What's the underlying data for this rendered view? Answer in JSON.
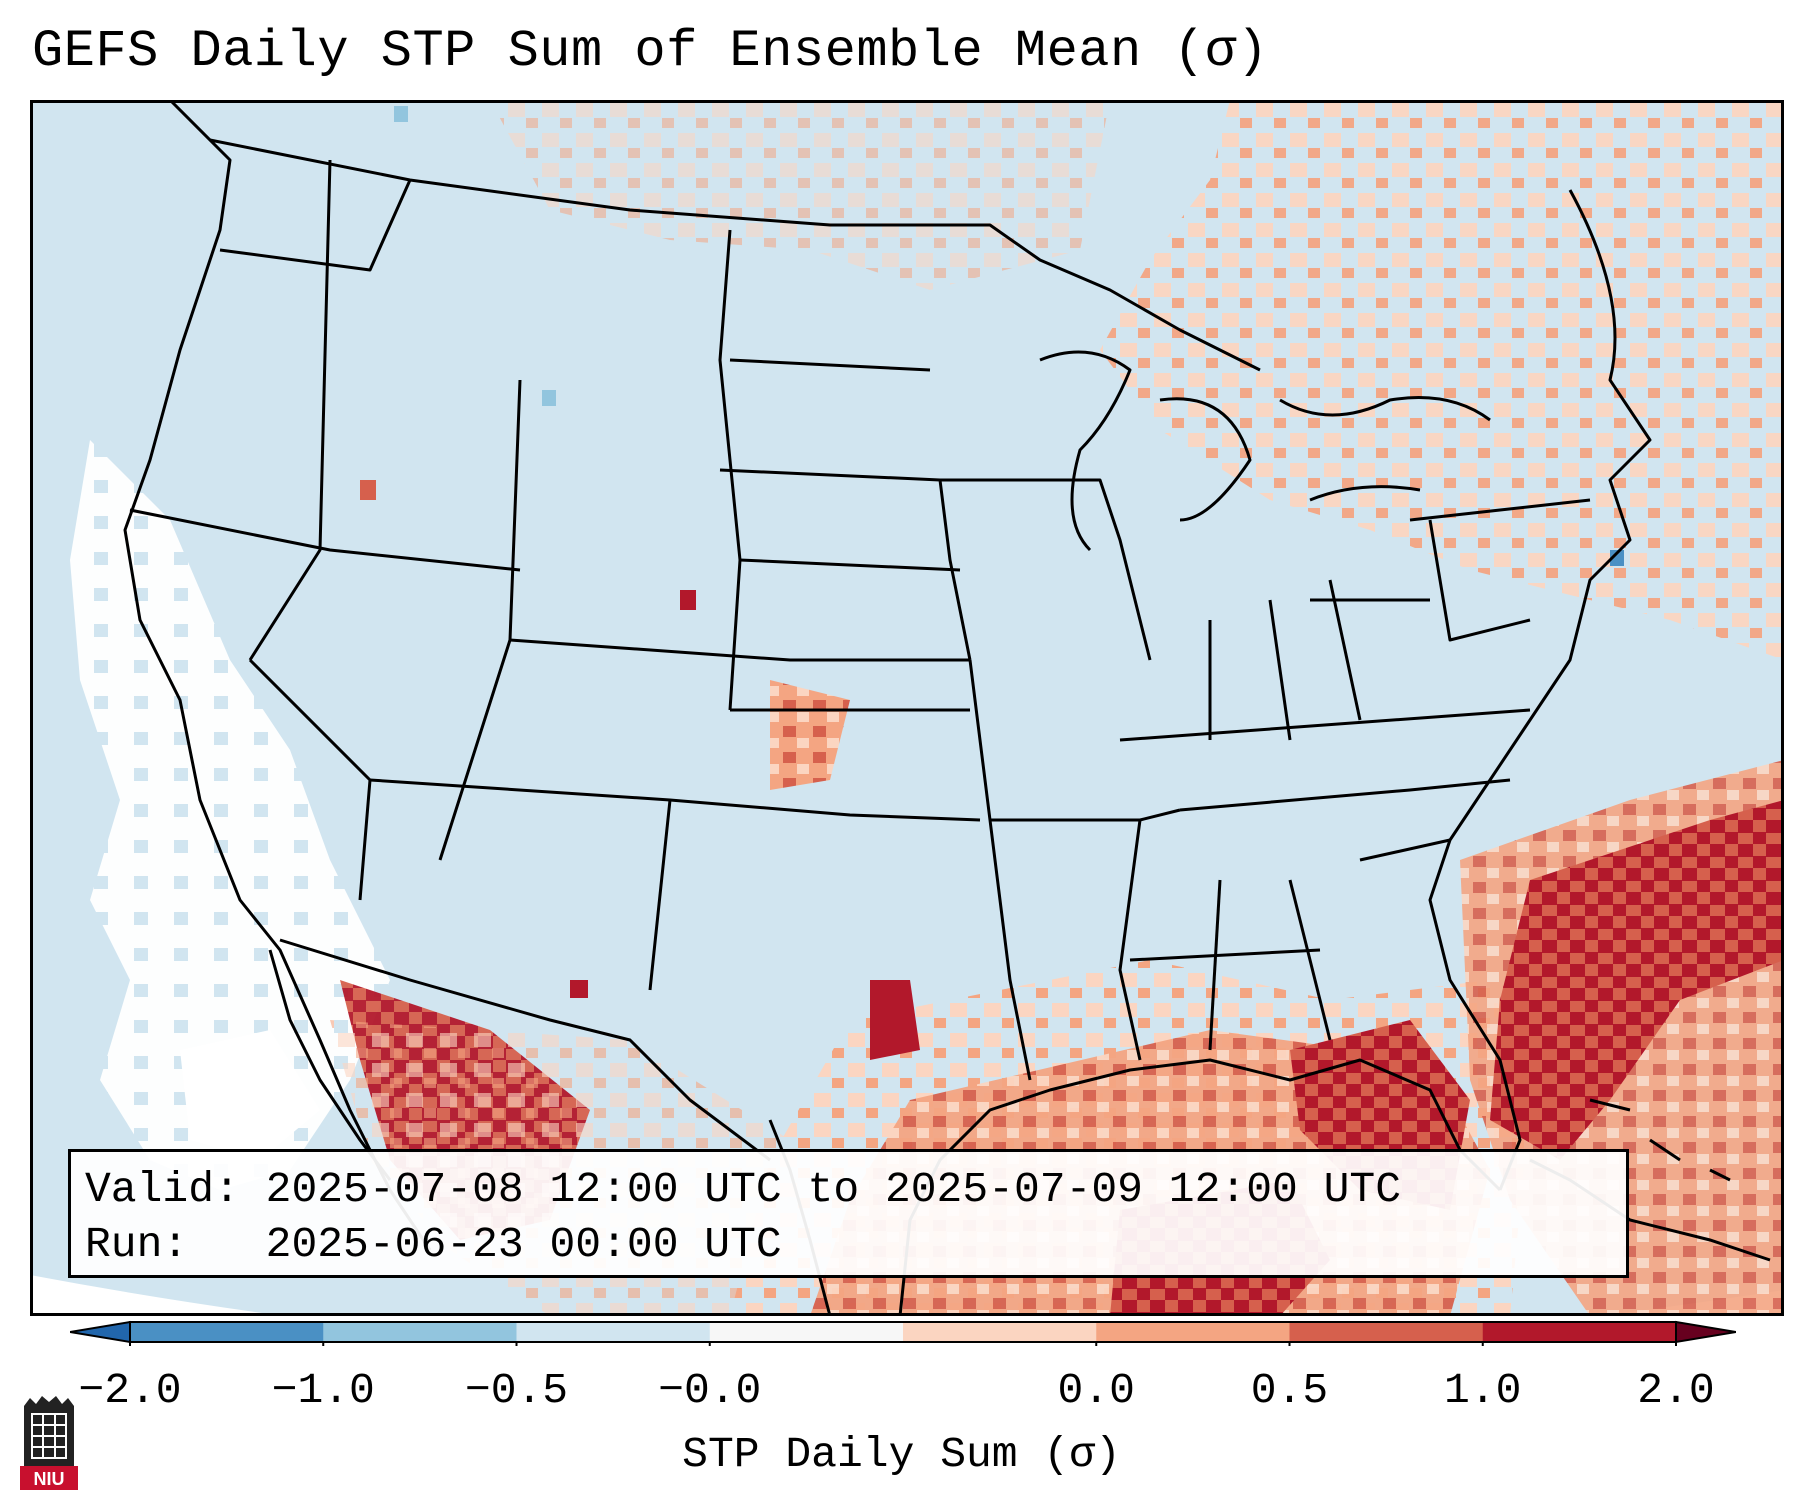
{
  "title": "GEFS Daily STP Sum of Ensemble Mean (σ)",
  "info": {
    "valid_label": "Valid:",
    "valid_value": "2025-07-08 12:00 UTC to 2025-07-09 12:00 UTC",
    "run_label": "Run:",
    "run_value": "2025-06-23 00:00 UTC"
  },
  "colorbar": {
    "label": "STP Daily Sum (σ)",
    "ticks": [
      "−2.0",
      "−1.0",
      "−0.5",
      "−0.0",
      "0.0",
      "0.5",
      "1.0",
      "2.0"
    ],
    "bin_colors": [
      "#4a90c4",
      "#92c5de",
      "#d1e5f0",
      "#f7f7f7",
      "#fbd5c1",
      "#f4a582",
      "#d6604d",
      "#b2182b"
    ],
    "under_color": "#2166ac",
    "over_color": "#67001f"
  },
  "map": {
    "background_color": "#d1e5f0",
    "region": "Contiguous United States, northern Mexico, Gulf of Mexico, western Atlantic",
    "highlights": [
      {
        "area": "Gulf Coast / Gulf of Mexico",
        "category": "1.0 to 2.0+"
      },
      {
        "area": "Southeast Atlantic coast / Florida",
        "category": "1.0 to 2.0+"
      },
      {
        "area": "Northwestern Mexico",
        "category": "1.0 to 2.0+"
      },
      {
        "area": "Northeast / Great Lakes / eastern Canada",
        "category": "0.0 to 1.0"
      }
    ]
  },
  "logo": {
    "text": "NIU"
  }
}
